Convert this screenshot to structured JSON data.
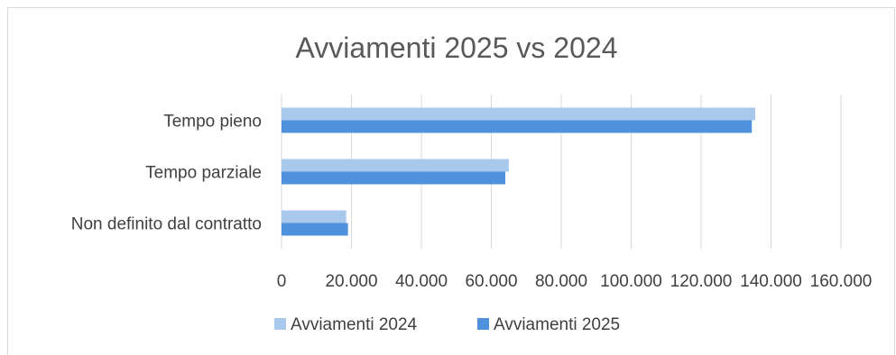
{
  "chart_data": {
    "type": "bar",
    "orientation": "horizontal",
    "title": "Avviamenti 2025 vs 2024",
    "categories": [
      "Non definito dal contratto",
      "Tempo parziale",
      "Tempo pieno"
    ],
    "series": [
      {
        "name": "Avviamenti 2024",
        "values": [
          18500,
          65000,
          135500
        ],
        "color": "#a8c8ec"
      },
      {
        "name": "Avviamenti 2025",
        "values": [
          19000,
          64000,
          134500
        ],
        "color": "#4f91dc"
      }
    ],
    "xlim": [
      0,
      160000
    ],
    "xticks": [
      0,
      20000,
      40000,
      60000,
      80000,
      100000,
      120000,
      140000,
      160000
    ],
    "xtick_labels": [
      "0",
      "20.000",
      "40.000",
      "60.000",
      "80.000",
      "100.000",
      "120.000",
      "140.000",
      "160.000"
    ],
    "grid": true,
    "legend": "bottom"
  }
}
